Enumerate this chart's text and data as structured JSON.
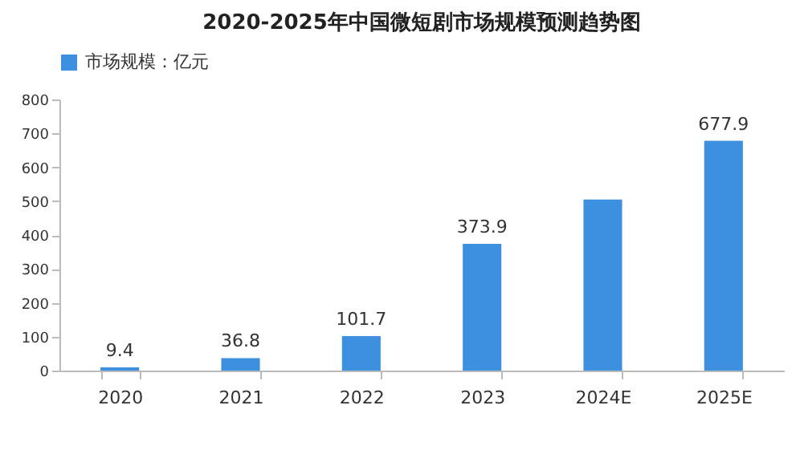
{
  "chart_data": {
    "type": "bar",
    "title": "2020-2025年中国微短剧市场规模预测趋势图",
    "categories": [
      "2020",
      "2021",
      "2022",
      "2023",
      "2024E",
      "2025E"
    ],
    "series": [
      {
        "name": "市场规模：亿元",
        "color": "#3d8fe0",
        "values": [
          9.4,
          36.8,
          101.7,
          373.9,
          505,
          677.9
        ],
        "value_labels": [
          "9.4",
          "36.8",
          "101.7",
          "373.9",
          null,
          "677.9"
        ]
      }
    ],
    "ylim": [
      0,
      800
    ],
    "yticks": [
      0,
      100,
      200,
      300,
      400,
      500,
      600,
      700,
      800
    ],
    "grid": false,
    "legend": "top"
  }
}
